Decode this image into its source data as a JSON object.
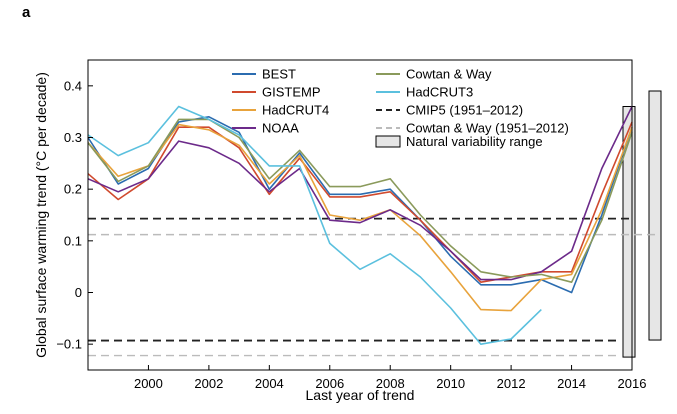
{
  "panel_label": "a",
  "chart_data": {
    "type": "line",
    "title": "",
    "xlabel": "Last year of trend",
    "ylabel": "Global surface warming trend (°C per decade)",
    "xlim": [
      1998,
      2016
    ],
    "ylim": [
      -0.15,
      0.45
    ],
    "xticks": [
      2000,
      2002,
      2004,
      2006,
      2008,
      2010,
      2012,
      2014,
      2016
    ],
    "yticks": [
      -0.1,
      0,
      0.1,
      0.2,
      0.3,
      0.4
    ],
    "xtick_labels": [
      "2000",
      "2002",
      "2004",
      "2006",
      "2008",
      "2010",
      "2012",
      "2014",
      "2016"
    ],
    "ytick_labels": [
      "−0.1",
      "0",
      "0.1",
      "0.2",
      "0.3",
      "0.4"
    ],
    "grid": false,
    "legend_position": "top-center",
    "series": [
      {
        "name": "BEST",
        "color": "#2b6cb0",
        "x": [
          1998,
          1999,
          2000,
          2001,
          2002,
          2003,
          2004,
          2005,
          2006,
          2007,
          2008,
          2009,
          2010,
          2011,
          2012,
          2013,
          2014,
          2015,
          2016
        ],
        "y": [
          0.3,
          0.21,
          0.24,
          0.33,
          0.34,
          0.31,
          0.2,
          0.27,
          0.19,
          0.19,
          0.2,
          0.14,
          0.07,
          0.015,
          0.015,
          0.025,
          0.0,
          0.15,
          0.32
        ]
      },
      {
        "name": "GISTEMP",
        "color": "#d04a2e",
        "x": [
          1998,
          1999,
          2000,
          2001,
          2002,
          2003,
          2004,
          2005,
          2006,
          2007,
          2008,
          2009,
          2010,
          2011,
          2012,
          2013,
          2014,
          2015,
          2016
        ],
        "y": [
          0.23,
          0.18,
          0.22,
          0.32,
          0.32,
          0.28,
          0.19,
          0.26,
          0.185,
          0.185,
          0.195,
          0.14,
          0.08,
          0.02,
          0.03,
          0.04,
          0.04,
          0.19,
          0.33
        ]
      },
      {
        "name": "HadCRUT4",
        "color": "#e8a33c",
        "x": [
          1998,
          1999,
          2000,
          2001,
          2002,
          2003,
          2004,
          2005,
          2006,
          2007,
          2008,
          2009,
          2010,
          2011,
          2012,
          2013,
          2014,
          2015,
          2016
        ],
        "y": [
          0.29,
          0.225,
          0.245,
          0.325,
          0.315,
          0.285,
          0.21,
          0.265,
          0.15,
          0.14,
          0.16,
          0.11,
          0.04,
          -0.033,
          -0.035,
          0.025,
          0.035,
          0.16,
          0.32
        ]
      },
      {
        "name": "NOAA",
        "color": "#6c2a8a",
        "x": [
          1998,
          1999,
          2000,
          2001,
          2002,
          2003,
          2004,
          2005,
          2006,
          2007,
          2008,
          2009,
          2010,
          2011,
          2012,
          2013,
          2014,
          2015,
          2016
        ],
        "y": [
          0.22,
          0.195,
          0.22,
          0.293,
          0.28,
          0.25,
          0.195,
          0.24,
          0.14,
          0.135,
          0.16,
          0.13,
          0.08,
          0.025,
          0.025,
          0.04,
          0.08,
          0.24,
          0.36
        ]
      },
      {
        "name": "Cowtan & Way",
        "color": "#8a9a5b",
        "x": [
          1998,
          1999,
          2000,
          2001,
          2002,
          2003,
          2004,
          2005,
          2006,
          2007,
          2008,
          2009,
          2010,
          2011,
          2012,
          2013,
          2014,
          2015,
          2016
        ],
        "y": [
          0.29,
          0.215,
          0.245,
          0.335,
          0.335,
          0.3,
          0.22,
          0.275,
          0.205,
          0.205,
          0.22,
          0.15,
          0.09,
          0.04,
          0.03,
          0.035,
          0.02,
          0.14,
          0.31
        ]
      },
      {
        "name": "HadCRUT3",
        "color": "#5bc0de",
        "x": [
          1998,
          1999,
          2000,
          2001,
          2002,
          2003,
          2004,
          2005,
          2006,
          2007,
          2008,
          2009,
          2010,
          2011,
          2012,
          2013
        ],
        "y": [
          0.305,
          0.265,
          0.29,
          0.36,
          0.335,
          0.305,
          0.245,
          0.245,
          0.095,
          0.045,
          0.075,
          0.03,
          -0.03,
          -0.1,
          -0.09,
          -0.033
        ]
      }
    ],
    "reference_lines": [
      {
        "name": "CMIP5 (1951–2012)",
        "color": "#222222",
        "values": [
          0.143,
          -0.093
        ]
      },
      {
        "name": "Cowtan & Way (1951–2012)",
        "color": "#bbbbbb",
        "values": [
          0.112,
          -0.122
        ]
      }
    ],
    "natural_variability": {
      "name": "Natural variability range",
      "color": "#e6e6e6",
      "ranges": [
        [
          -0.125,
          0.36
        ],
        [
          -0.092,
          0.39
        ]
      ]
    }
  }
}
